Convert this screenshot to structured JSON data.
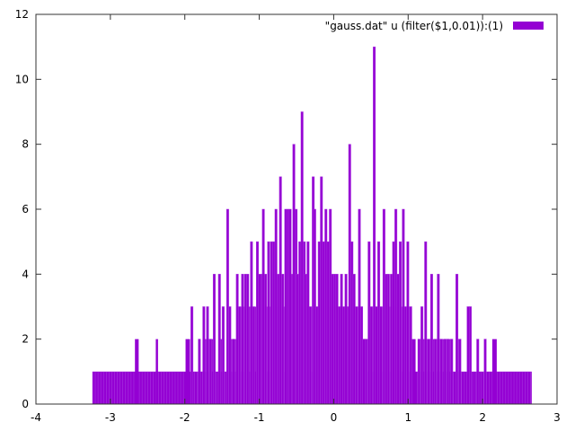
{
  "chart_data": {
    "type": "bar",
    "title": "",
    "xlabel": "",
    "ylabel": "",
    "xlim": [
      -4,
      3
    ],
    "ylim": [
      0,
      12
    ],
    "x_ticks": [
      -4,
      -3,
      -2,
      -1,
      0,
      1,
      2,
      3
    ],
    "y_ticks": [
      0,
      2,
      4,
      6,
      8,
      10,
      12
    ],
    "grid": false,
    "legend_position": "top-right",
    "bar_width": 0.01,
    "series": [
      {
        "name": "\"gauss.dat\" u (filter($1,0.01)):(1)",
        "color": "#9400d3",
        "base_range": [
          -3.24,
          2.66
        ],
        "base_value": 1,
        "plateaus": [
          {
            "x0": -2.67,
            "x1": -2.62,
            "y": 2
          },
          {
            "x0": -2.39,
            "x1": -2.36,
            "y": 2
          },
          {
            "x0": -1.99,
            "x1": -1.93,
            "y": 2
          },
          {
            "x0": 1.03,
            "x1": 1.1,
            "y": 2
          },
          {
            "x0": 2.13,
            "x1": 2.19,
            "y": 2
          }
        ],
        "spikes": [
          [
            -1.92,
            3
          ],
          [
            -1.82,
            2
          ],
          [
            -1.76,
            3
          ],
          [
            -1.71,
            3
          ],
          [
            -1.67,
            2
          ],
          [
            -1.62,
            4
          ],
          [
            -1.55,
            4
          ],
          [
            -1.5,
            3
          ],
          [
            -1.44,
            6
          ],
          [
            -1.41,
            3
          ],
          [
            -1.36,
            2
          ],
          [
            -1.31,
            4
          ],
          [
            -1.28,
            3
          ],
          [
            -1.24,
            4
          ],
          [
            -1.2,
            4
          ],
          [
            -1.17,
            4
          ],
          [
            -1.12,
            5
          ],
          [
            -1.09,
            3
          ],
          [
            -1.04,
            5
          ],
          [
            -1.01,
            4
          ],
          [
            -0.98,
            4
          ],
          [
            -0.96,
            6
          ],
          [
            -0.93,
            4
          ],
          [
            -0.89,
            5
          ],
          [
            -0.85,
            5
          ],
          [
            -0.82,
            5
          ],
          [
            -0.79,
            6
          ],
          [
            -0.76,
            4
          ],
          [
            -0.73,
            7
          ],
          [
            -0.7,
            4
          ],
          [
            -0.66,
            6
          ],
          [
            -0.63,
            6
          ],
          [
            -0.6,
            6
          ],
          [
            -0.57,
            4
          ],
          [
            -0.55,
            8
          ],
          [
            -0.52,
            6
          ],
          [
            -0.5,
            4
          ],
          [
            -0.47,
            5
          ],
          [
            -0.44,
            9
          ],
          [
            -0.41,
            5
          ],
          [
            -0.39,
            4
          ],
          [
            -0.36,
            5
          ],
          [
            -0.33,
            3
          ],
          [
            -0.29,
            7
          ],
          [
            -0.27,
            6
          ],
          [
            -0.24,
            3
          ],
          [
            -0.21,
            5
          ],
          [
            -0.18,
            7
          ],
          [
            -0.15,
            5
          ],
          [
            -0.12,
            6
          ],
          [
            -0.09,
            5
          ],
          [
            -0.06,
            6
          ],
          [
            -0.03,
            4
          ],
          [
            0.0,
            4
          ],
          [
            0.03,
            4
          ],
          [
            0.06,
            3
          ],
          [
            0.09,
            4
          ],
          [
            0.12,
            3
          ],
          [
            0.15,
            4
          ],
          [
            0.18,
            3
          ],
          [
            0.2,
            8
          ],
          [
            0.23,
            5
          ],
          [
            0.26,
            4
          ],
          [
            0.29,
            3
          ],
          [
            0.33,
            6
          ],
          [
            0.36,
            3
          ],
          [
            0.39,
            2
          ],
          [
            0.42,
            2
          ],
          [
            0.46,
            5
          ],
          [
            0.49,
            3
          ],
          [
            0.53,
            11
          ],
          [
            0.56,
            3
          ],
          [
            0.59,
            5
          ],
          [
            0.62,
            3
          ],
          [
            0.66,
            6
          ],
          [
            0.69,
            4
          ],
          [
            0.72,
            4
          ],
          [
            0.76,
            4
          ],
          [
            0.79,
            5
          ],
          [
            0.82,
            6
          ],
          [
            0.85,
            4
          ],
          [
            0.88,
            5
          ],
          [
            0.92,
            6
          ],
          [
            0.95,
            3
          ],
          [
            0.98,
            5
          ],
          [
            1.02,
            3
          ],
          [
            1.13,
            2
          ],
          [
            1.17,
            3
          ],
          [
            1.22,
            5
          ],
          [
            1.26,
            2
          ],
          [
            1.3,
            4
          ],
          [
            1.35,
            2
          ],
          [
            1.39,
            4
          ],
          [
            1.43,
            2
          ],
          [
            1.48,
            2
          ],
          [
            1.52,
            2
          ],
          [
            1.57,
            2
          ],
          [
            1.64,
            4
          ],
          [
            1.68,
            2
          ],
          [
            1.79,
            3
          ],
          [
            1.82,
            3
          ],
          [
            1.92,
            2
          ],
          [
            2.02,
            2
          ]
        ]
      }
    ]
  },
  "legend": {
    "label": "\"gauss.dat\" u (filter($1,0.01)):(1)",
    "swatch_color": "#9400d3"
  },
  "axes": {
    "frame_color": "#333333"
  }
}
